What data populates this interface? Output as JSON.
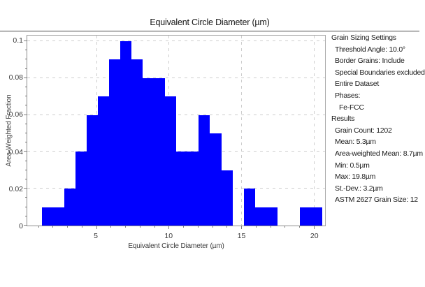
{
  "chart_data": {
    "type": "bar",
    "title": "Equivalent Circle Diameter (µm)",
    "xlabel": "Equivalent Circle Diameter (µm)",
    "ylabel": "Area-Weighted Fraction",
    "xlim": [
      0.25,
      20.78
    ],
    "ylim": [
      0,
      0.103
    ],
    "bin_start": 0.5,
    "bin_width": 0.772,
    "values": [
      0,
      0.01,
      0.01,
      0.02,
      0.04,
      0.06,
      0.07,
      0.09,
      0.1,
      0.09,
      0.08,
      0.08,
      0.07,
      0.04,
      0.04,
      0.06,
      0.05,
      0.03,
      0,
      0.02,
      0.01,
      0.01,
      0,
      0,
      0.01,
      0.01
    ],
    "x_ticks": [
      {
        "v": 5,
        "label": "5"
      },
      {
        "v": 10,
        "label": "10"
      },
      {
        "v": 15,
        "label": "15"
      },
      {
        "v": 20,
        "label": "20"
      }
    ],
    "x_minor_step": 1,
    "y_ticks": [
      {
        "v": 0,
        "label": "0"
      },
      {
        "v": 0.02,
        "label": "0.02"
      },
      {
        "v": 0.04,
        "label": "0.04"
      },
      {
        "v": 0.06,
        "label": "0.06"
      },
      {
        "v": 0.08,
        "label": "0.08"
      },
      {
        "v": 0.1,
        "label": "0.1"
      }
    ],
    "y_minor_step": 0.005,
    "grid": true,
    "legend": "none",
    "bar_color": "#0000ff",
    "grid_color": "#cdcdcd"
  },
  "sidebar": {
    "heading": "Grain Sizing Settings",
    "settings": [
      "Threshold Angle: 10.0°",
      "Border Grains: Include",
      "Special Boundaries excluded",
      "Entire Dataset",
      "Phases:"
    ],
    "phase_items": [
      "Fe-FCC"
    ],
    "results_heading": "Results",
    "results": [
      "Grain Count: 1202",
      "Mean: 5.3µm",
      "Area-weighted Mean: 8.7µm",
      "Min: 0.5µm",
      "Max: 19.8µm",
      "St.-Dev.: 3.2µm",
      "ASTM 2627 Grain Size: 12"
    ]
  }
}
